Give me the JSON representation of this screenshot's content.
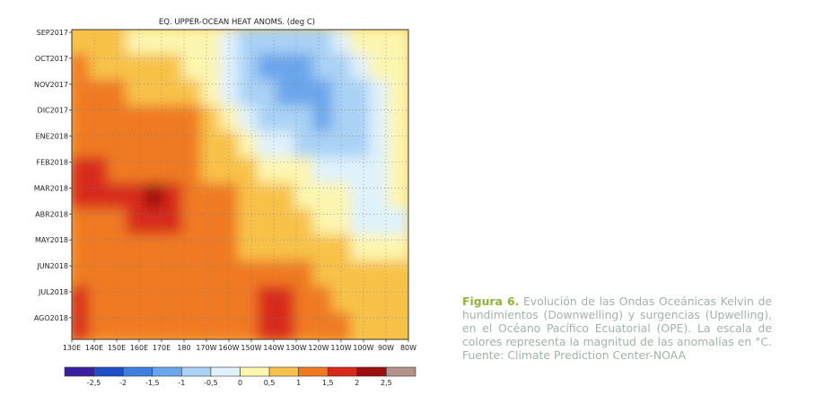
{
  "chart_data": {
    "type": "heatmap",
    "title": "EQ. UPPER-OCEAN HEAT ANOMS. (deg C)",
    "y_tick_labels": [
      "SEP2017",
      "OCT2017",
      "NOV2017",
      "DIC2017",
      "ENE2018",
      "FEB2018",
      "MAR2018",
      "ABR2018",
      "MAY2018",
      "JUN2018",
      "JUL2018",
      "AGO2018"
    ],
    "x_tick_labels": [
      "130E",
      "140E",
      "150E",
      "160E",
      "170E",
      "180",
      "170W",
      "160W",
      "150W",
      "140W",
      "130W",
      "120W",
      "110W",
      "100W",
      "90W",
      "80W"
    ],
    "colorbar": {
      "tick_labels": [
        "-2,5",
        "-2",
        "-1,5",
        "-1",
        "-0,5",
        "0",
        "0,5",
        "1",
        "1,5",
        "2",
        "2,5"
      ],
      "colors": [
        "#3a1fa0",
        "#1f4ec8",
        "#3f7fe0",
        "#6aa6ec",
        "#a9d2f5",
        "#dff2fb",
        "#fdf6b0",
        "#f8c24a",
        "#f07a22",
        "#d82a1a",
        "#9c0f10",
        "#b39088"
      ]
    },
    "grid": true,
    "legend": "colorbar-bottom",
    "note": "values are approximate anomalies (deg C) read from colors; rows ~monthly from SEP2017 to AGO2018, columns 130E to 80W",
    "grid_values": [
      [
        0.6,
        0.7,
        0.5,
        0.4,
        0.3,
        0.3,
        0.2,
        0.1,
        -0.2,
        -0.6,
        -0.8,
        -1.0,
        -0.8,
        -0.6,
        -0.3,
        0.0,
        0.2,
        0.4
      ],
      [
        1.0,
        0.9,
        0.7,
        0.6,
        0.6,
        0.5,
        0.4,
        0.0,
        -0.4,
        -0.8,
        -1.1,
        -1.2,
        -1.1,
        -1.0,
        -0.8,
        -0.5,
        0.0,
        0.3
      ],
      [
        1.1,
        1.1,
        1.0,
        0.8,
        0.8,
        0.7,
        0.6,
        0.2,
        -0.2,
        -0.6,
        -1.0,
        -1.2,
        -1.1,
        -1.1,
        -0.9,
        -0.7,
        -0.4,
        0.2
      ],
      [
        1.1,
        1.1,
        1.0,
        1.1,
        1.1,
        1.0,
        1.0,
        0.5,
        0.0,
        -0.4,
        -0.8,
        -1.0,
        -1.0,
        -1.1,
        -1.0,
        -0.9,
        -0.5,
        0.1
      ],
      [
        1.1,
        1.1,
        1.1,
        1.1,
        1.2,
        1.2,
        1.0,
        0.8,
        0.6,
        0.2,
        -0.2,
        -0.5,
        -0.7,
        -0.9,
        -1.0,
        -0.9,
        -0.5,
        0.0
      ],
      [
        1.5,
        1.5,
        1.3,
        1.3,
        1.2,
        1.1,
        1.0,
        0.9,
        0.8,
        0.6,
        0.4,
        0.2,
        0.0,
        -0.3,
        -0.4,
        -0.5,
        -0.3,
        0.1
      ],
      [
        1.6,
        1.5,
        1.5,
        1.7,
        2.1,
        1.8,
        1.4,
        1.2,
        1.0,
        0.8,
        0.7,
        0.5,
        0.3,
        0.2,
        0.0,
        -0.1,
        -0.2,
        0.1
      ],
      [
        1.1,
        1.2,
        1.3,
        1.5,
        1.5,
        1.5,
        1.3,
        1.1,
        1.0,
        0.9,
        0.8,
        0.6,
        0.5,
        0.3,
        0.2,
        -0.2,
        -0.5,
        -0.3
      ],
      [
        1.0,
        1.1,
        1.2,
        1.3,
        1.1,
        1.1,
        1.1,
        1.0,
        1.0,
        0.9,
        0.9,
        0.8,
        0.8,
        0.6,
        0.5,
        0.3,
        0.1,
        0.2
      ],
      [
        1.1,
        1.2,
        1.2,
        1.1,
        1.1,
        1.1,
        1.0,
        1.0,
        1.0,
        1.1,
        1.4,
        1.4,
        1.1,
        0.9,
        0.8,
        0.7,
        0.6,
        0.5
      ],
      [
        1.5,
        1.2,
        1.2,
        1.3,
        1.2,
        1.2,
        1.1,
        1.1,
        1.1,
        1.2,
        1.5,
        1.6,
        1.3,
        1.0,
        0.9,
        0.8,
        0.8,
        0.6
      ],
      [
        1.5,
        1.2,
        1.1,
        1.4,
        1.4,
        1.3,
        1.2,
        1.1,
        1.1,
        1.2,
        1.5,
        1.5,
        1.3,
        1.1,
        1.0,
        0.9,
        0.9,
        0.7
      ]
    ]
  },
  "caption": {
    "lead": "Figura 6.",
    "text": " Evolución de las Ondas Oceánicas Kelvin de hundimientos (Downwelling) y surgencias (Upwelling), en el Océano Pacífico Ecuatorial (OPE). La escala de colores representa la magnitud de las anomalías en °C. Fuente: Climate Prediction Center-NOAA"
  }
}
